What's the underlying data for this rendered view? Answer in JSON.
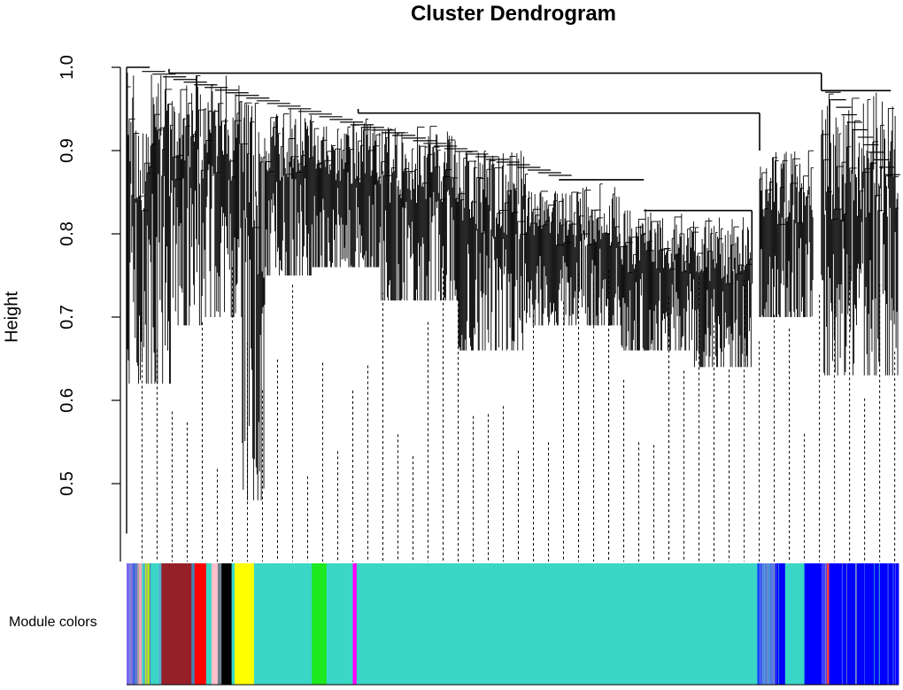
{
  "chart_data": {
    "type": "dendrogram",
    "title": "Cluster Dendrogram",
    "ylabel": "Height",
    "ylim": [
      0.43,
      1.0
    ],
    "yticks": [
      "0.5",
      "0.6",
      "0.7",
      "0.8",
      "0.9",
      "1.0"
    ],
    "top_level_merges": [
      {
        "height": 0.993,
        "description": "main cluster vs right cluster"
      },
      {
        "height": 0.945,
        "description": "left-middle vs right-middle group"
      },
      {
        "height": 0.865,
        "description": "middle subgroup"
      },
      {
        "height": 0.828,
        "description": "middle-right subgroup"
      },
      {
        "height": 0.972,
        "description": "right cluster internal"
      }
    ],
    "color_row_label": "Module colors",
    "module_color_segments": [
      {
        "color": "#7b68ee",
        "start": 0.0,
        "end": 0.008
      },
      {
        "color": "#4169e1",
        "start": 0.008,
        "end": 0.012
      },
      {
        "color": "#a0a0a0",
        "start": 0.012,
        "end": 0.016
      },
      {
        "color": "#f4a6b8",
        "start": 0.016,
        "end": 0.02
      },
      {
        "color": "#3ad6c6",
        "start": 0.02,
        "end": 0.024
      },
      {
        "color": "#b5f000",
        "start": 0.024,
        "end": 0.031
      },
      {
        "color": "#3ad6c6",
        "start": 0.031,
        "end": 0.045
      },
      {
        "color": "#96202a",
        "start": 0.045,
        "end": 0.084
      },
      {
        "color": "#4682b4",
        "start": 0.084,
        "end": 0.088
      },
      {
        "color": "#ff0000",
        "start": 0.088,
        "end": 0.103
      },
      {
        "color": "#3ad6c6",
        "start": 0.103,
        "end": 0.11
      },
      {
        "color": "#ffc0cb",
        "start": 0.11,
        "end": 0.118
      },
      {
        "color": "#708090",
        "start": 0.118,
        "end": 0.123
      },
      {
        "color": "#000000",
        "start": 0.123,
        "end": 0.136
      },
      {
        "color": "#3ad6c6",
        "start": 0.136,
        "end": 0.14
      },
      {
        "color": "#ffff00",
        "start": 0.14,
        "end": 0.165
      },
      {
        "color": "#3ad6c6",
        "start": 0.165,
        "end": 0.24
      },
      {
        "color": "#1ee81e",
        "start": 0.24,
        "end": 0.259
      },
      {
        "color": "#3ad6c6",
        "start": 0.259,
        "end": 0.293
      },
      {
        "color": "#ff00ff",
        "start": 0.293,
        "end": 0.298
      },
      {
        "color": "#3ad6c6",
        "start": 0.298,
        "end": 0.817
      },
      {
        "color": "#1a40ff",
        "start": 0.817,
        "end": 0.823
      },
      {
        "color": "#4a7fe0",
        "start": 0.823,
        "end": 0.84
      },
      {
        "color": "#0000ff",
        "start": 0.84,
        "end": 0.853
      },
      {
        "color": "#3ad6c6",
        "start": 0.853,
        "end": 0.878
      },
      {
        "color": "#0000ff",
        "start": 0.878,
        "end": 0.9
      },
      {
        "color": "#3f3fff",
        "start": 0.9,
        "end": 0.907
      },
      {
        "color": "#ff4040",
        "start": 0.907,
        "end": 0.91
      },
      {
        "color": "#0000ff",
        "start": 0.91,
        "end": 1.0
      }
    ]
  }
}
